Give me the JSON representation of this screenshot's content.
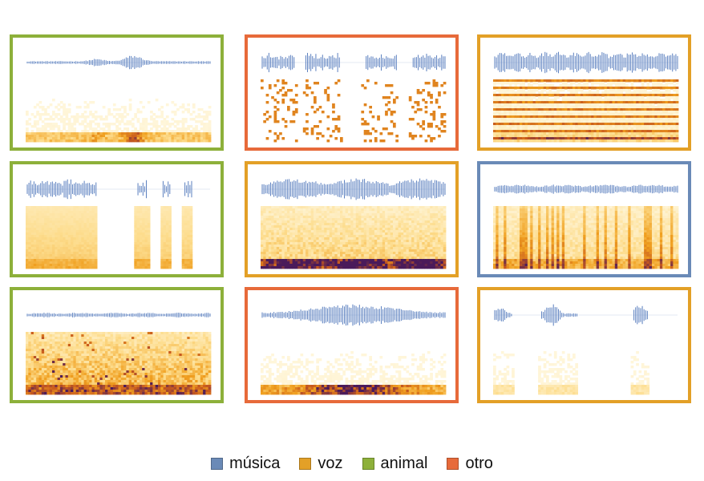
{
  "legend": [
    {
      "label": "música",
      "category": "musica",
      "color": "#6a8ab7"
    },
    {
      "label": "voz",
      "category": "voz",
      "color": "#e3a027"
    },
    {
      "label": "animal",
      "category": "animal",
      "color": "#8db03a"
    },
    {
      "label": "otro",
      "category": "otro",
      "color": "#e76a3a"
    }
  ],
  "tiles": [
    {
      "category": "animal"
    },
    {
      "category": "otro"
    },
    {
      "category": "voz"
    },
    {
      "category": "animal"
    },
    {
      "category": "voz"
    },
    {
      "category": "musica"
    },
    {
      "category": "animal"
    },
    {
      "category": "otro"
    },
    {
      "category": "voz"
    }
  ],
  "colors": {
    "waveform": "#5a7fbf",
    "spectrogram_low": "#fffbea",
    "spectrogram_mid": "#f0a020",
    "spectrogram_high": "#4a1a5a"
  }
}
